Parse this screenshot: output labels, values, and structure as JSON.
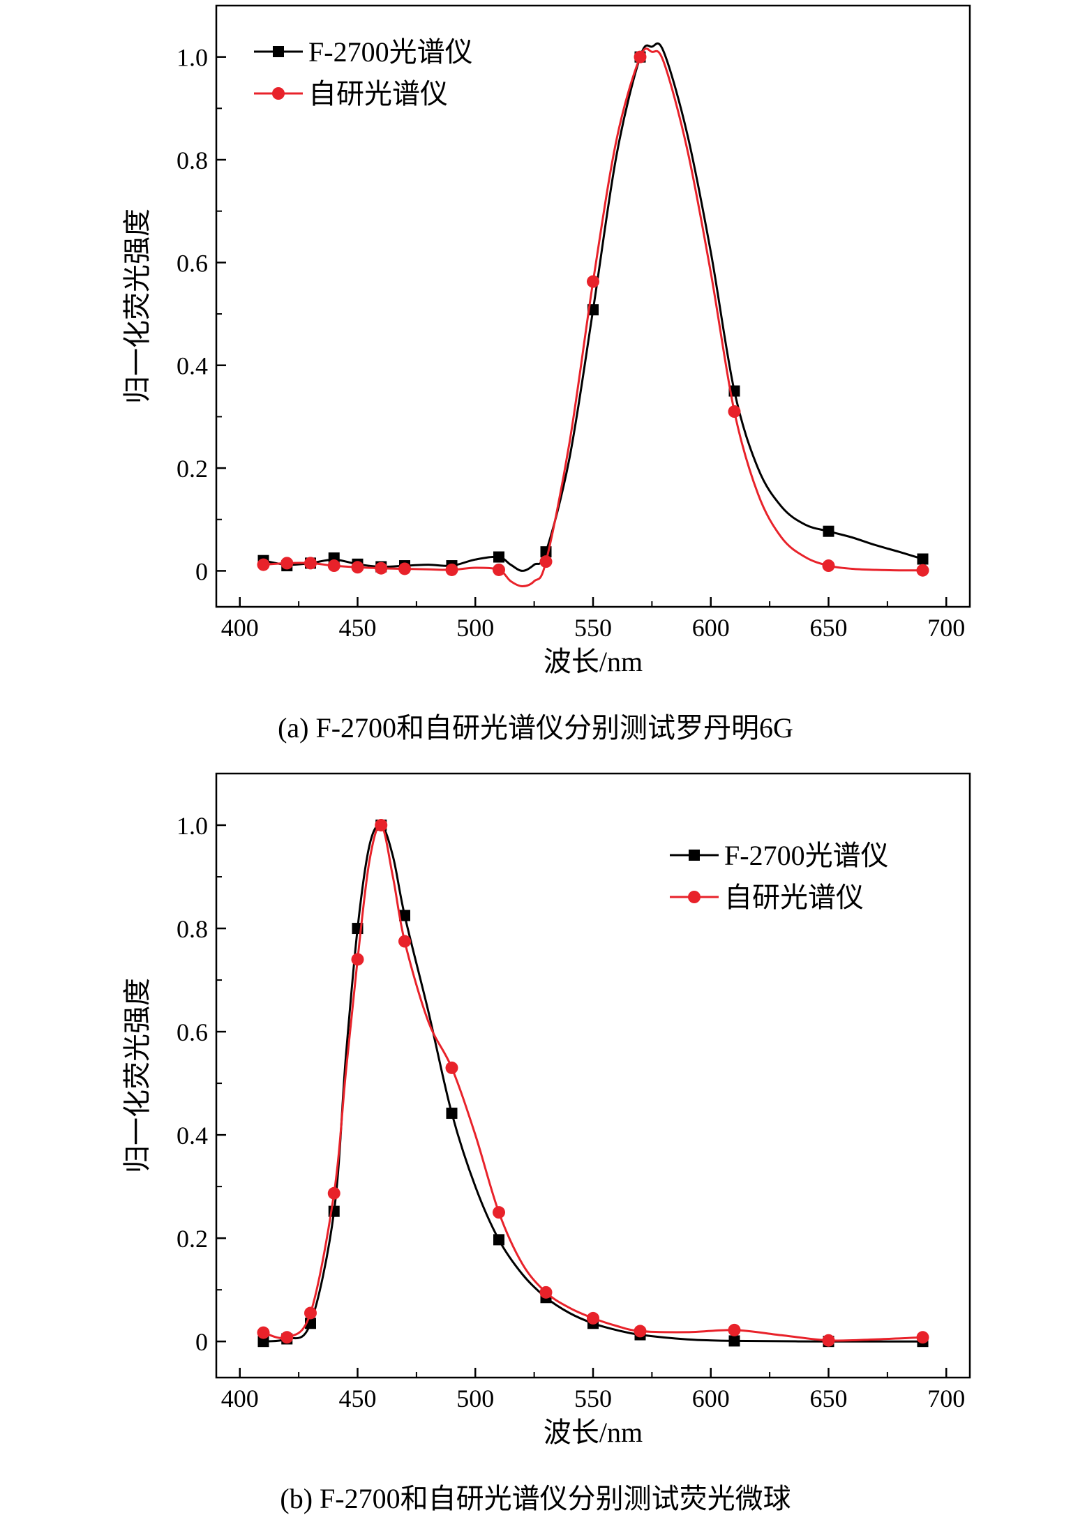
{
  "chart_data": [
    {
      "type": "line",
      "caption": "(a) F-2700和自研光谱仪分别测试罗丹明6G",
      "xlabel": "波长/nm",
      "ylabel": "归一化荧光强度",
      "xlim": [
        390,
        710
      ],
      "ylim": [
        -0.07,
        1.1
      ],
      "xticks": [
        400,
        450,
        500,
        550,
        600,
        650,
        700
      ],
      "yticks": [
        0,
        0.2,
        0.4,
        0.6,
        0.8,
        1.0
      ],
      "ytick_labels": [
        "0",
        "0.2",
        "0.4",
        "0.6",
        "0.8",
        "1.0"
      ],
      "legend": "top-left",
      "grid": false,
      "series": [
        {
          "name": "F-2700光谱仪",
          "color": "#000000",
          "marker": "square",
          "x": [
            410,
            420,
            430,
            440,
            450,
            460,
            470,
            490,
            510,
            530,
            550,
            570,
            610,
            650,
            690
          ],
          "y": [
            0.02,
            0.01,
            0.015,
            0.025,
            0.013,
            0.008,
            0.01,
            0.01,
            0.027,
            0.037,
            0.508,
            1.0,
            0.35,
            0.077,
            0.023
          ],
          "curve": [
            [
              410,
              0.02
            ],
            [
              420,
              0.012
            ],
            [
              430,
              0.015
            ],
            [
              440,
              0.022
            ],
            [
              450,
              0.013
            ],
            [
              460,
              0.008
            ],
            [
              470,
              0.01
            ],
            [
              480,
              0.012
            ],
            [
              490,
              0.01
            ],
            [
              500,
              0.022
            ],
            [
              510,
              0.027
            ],
            [
              515,
              0.012
            ],
            [
              520,
              0.0
            ],
            [
              525,
              0.012
            ],
            [
              530,
              0.037
            ],
            [
              540,
              0.22
            ],
            [
              550,
              0.508
            ],
            [
              560,
              0.81
            ],
            [
              570,
              1.0
            ],
            [
              575,
              1.02
            ],
            [
              580,
              1.01
            ],
            [
              590,
              0.85
            ],
            [
              600,
              0.62
            ],
            [
              610,
              0.35
            ],
            [
              620,
              0.2
            ],
            [
              630,
              0.125
            ],
            [
              640,
              0.09
            ],
            [
              650,
              0.077
            ],
            [
              660,
              0.065
            ],
            [
              670,
              0.05
            ],
            [
              680,
              0.037
            ],
            [
              690,
              0.023
            ]
          ]
        },
        {
          "name": "自研光谱仪",
          "color": "#e8222a",
          "marker": "circle",
          "x": [
            410,
            420,
            430,
            440,
            450,
            460,
            470,
            490,
            510,
            530,
            550,
            570,
            610,
            650,
            690
          ],
          "y": [
            0.012,
            0.015,
            0.015,
            0.01,
            0.007,
            0.005,
            0.004,
            0.002,
            0.002,
            0.018,
            0.563,
            1.0,
            0.31,
            0.01,
            0.001
          ],
          "curve": [
            [
              410,
              0.012
            ],
            [
              420,
              0.015
            ],
            [
              430,
              0.015
            ],
            [
              440,
              0.01
            ],
            [
              450,
              0.007
            ],
            [
              460,
              0.005
            ],
            [
              470,
              0.004
            ],
            [
              480,
              0.003
            ],
            [
              490,
              0.002
            ],
            [
              500,
              0.006
            ],
            [
              510,
              0.002
            ],
            [
              515,
              -0.02
            ],
            [
              520,
              -0.03
            ],
            [
              525,
              -0.02
            ],
            [
              530,
              0.018
            ],
            [
              540,
              0.25
            ],
            [
              550,
              0.563
            ],
            [
              560,
              0.84
            ],
            [
              570,
              1.0
            ],
            [
              575,
              1.01
            ],
            [
              580,
              0.99
            ],
            [
              590,
              0.82
            ],
            [
              600,
              0.58
            ],
            [
              610,
              0.31
            ],
            [
              620,
              0.15
            ],
            [
              630,
              0.065
            ],
            [
              640,
              0.027
            ],
            [
              650,
              0.01
            ],
            [
              660,
              0.004
            ],
            [
              670,
              0.002
            ],
            [
              680,
              0.001
            ],
            [
              690,
              0.001
            ]
          ]
        }
      ]
    },
    {
      "type": "line",
      "caption": "(b) F-2700和自研光谱仪分别测试荧光微球",
      "xlabel": "波长/nm",
      "ylabel": "归一化荧光强度",
      "xlim": [
        390,
        710
      ],
      "ylim": [
        -0.07,
        1.1
      ],
      "xticks": [
        400,
        450,
        500,
        550,
        600,
        650,
        700
      ],
      "yticks": [
        0,
        0.2,
        0.4,
        0.6,
        0.8,
        1.0
      ],
      "ytick_labels": [
        "0",
        "0.2",
        "0.4",
        "0.6",
        "0.8",
        "1.0"
      ],
      "legend": "top-right",
      "grid": false,
      "series": [
        {
          "name": "F-2700光谱仪",
          "color": "#000000",
          "marker": "square",
          "x": [
            410,
            420,
            430,
            440,
            450,
            460,
            470,
            490,
            510,
            530,
            550,
            570,
            610,
            650,
            690
          ],
          "y": [
            0.0,
            0.005,
            0.035,
            0.252,
            0.8,
            1.0,
            0.825,
            0.442,
            0.197,
            0.085,
            0.035,
            0.013,
            0.001,
            0.0,
            0.0
          ],
          "curve": [
            [
              410,
              0.0
            ],
            [
              420,
              0.005
            ],
            [
              430,
              0.035
            ],
            [
              440,
              0.252
            ],
            [
              445,
              0.55
            ],
            [
              450,
              0.8
            ],
            [
              455,
              0.96
            ],
            [
              460,
              1.0
            ],
            [
              465,
              0.94
            ],
            [
              470,
              0.825
            ],
            [
              480,
              0.64
            ],
            [
              490,
              0.442
            ],
            [
              500,
              0.3
            ],
            [
              510,
              0.197
            ],
            [
              520,
              0.13
            ],
            [
              530,
              0.085
            ],
            [
              540,
              0.055
            ],
            [
              550,
              0.035
            ],
            [
              560,
              0.022
            ],
            [
              570,
              0.013
            ],
            [
              590,
              0.004
            ],
            [
              610,
              0.001
            ],
            [
              650,
              0.0
            ],
            [
              690,
              0.0
            ]
          ]
        },
        {
          "name": "自研光谱仪",
          "color": "#e8222a",
          "marker": "circle",
          "x": [
            410,
            420,
            430,
            440,
            450,
            460,
            470,
            490,
            510,
            530,
            550,
            570,
            610,
            650,
            690
          ],
          "y": [
            0.017,
            0.008,
            0.055,
            0.287,
            0.74,
            1.0,
            0.775,
            0.53,
            0.25,
            0.095,
            0.045,
            0.02,
            0.022,
            0.002,
            0.008
          ],
          "curve": [
            [
              410,
              0.017
            ],
            [
              420,
              0.008
            ],
            [
              430,
              0.055
            ],
            [
              440,
              0.287
            ],
            [
              445,
              0.52
            ],
            [
              450,
              0.74
            ],
            [
              455,
              0.93
            ],
            [
              460,
              1.0
            ],
            [
              465,
              0.9
            ],
            [
              470,
              0.775
            ],
            [
              480,
              0.62
            ],
            [
              490,
              0.53
            ],
            [
              500,
              0.4
            ],
            [
              510,
              0.25
            ],
            [
              520,
              0.15
            ],
            [
              530,
              0.095
            ],
            [
              540,
              0.065
            ],
            [
              550,
              0.045
            ],
            [
              560,
              0.03
            ],
            [
              570,
              0.02
            ],
            [
              590,
              0.018
            ],
            [
              610,
              0.022
            ],
            [
              630,
              0.012
            ],
            [
              650,
              0.002
            ],
            [
              670,
              0.004
            ],
            [
              690,
              0.008
            ]
          ]
        }
      ]
    }
  ]
}
